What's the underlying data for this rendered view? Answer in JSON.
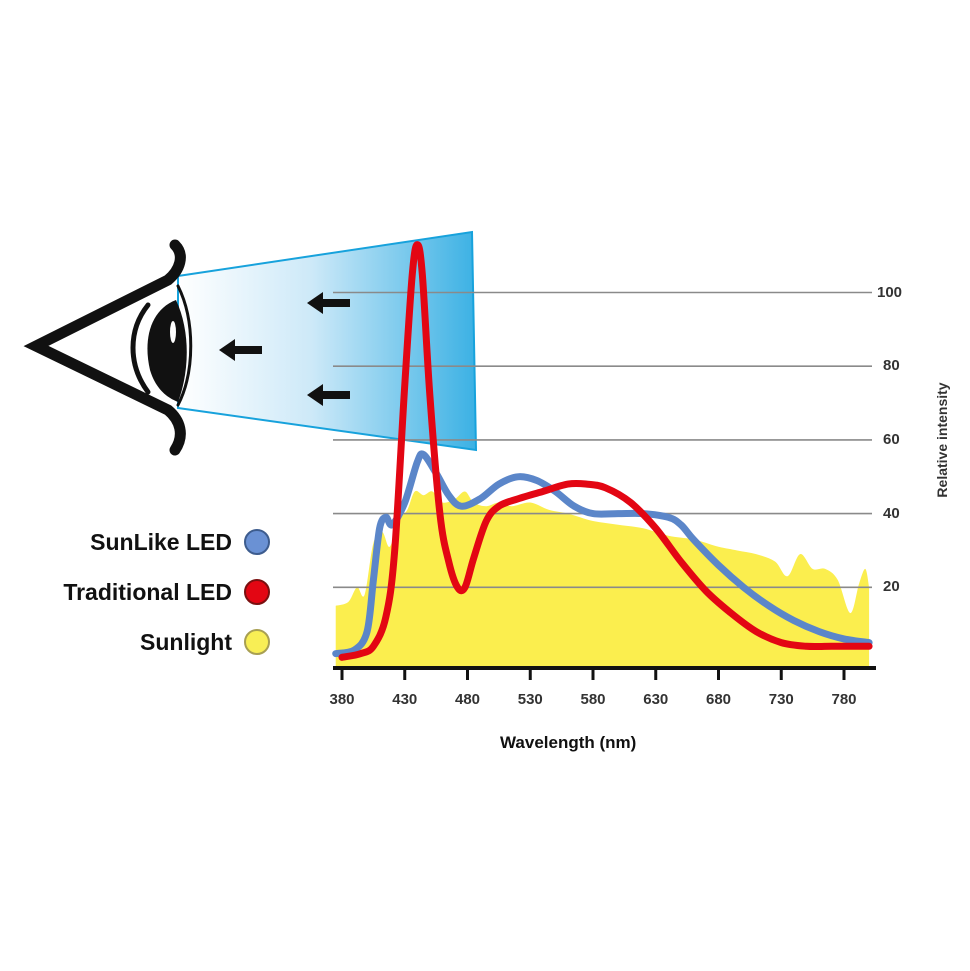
{
  "chart_data": {
    "type": "line",
    "title": "",
    "xlabel": "Wavelength (nm)",
    "ylabel": "Relative intensity",
    "xlim": [
      375,
      800
    ],
    "ylim": [
      0,
      115
    ],
    "x_ticks": [
      380,
      430,
      480,
      530,
      580,
      630,
      680,
      730,
      780
    ],
    "y_ticks": [
      20,
      40,
      60,
      80,
      100
    ],
    "grid": "horizontal",
    "legend_position": "left",
    "series": [
      {
        "name": "SunLike LED",
        "color": "#5b86c9",
        "style": "line",
        "x": [
          375,
          390,
          400,
          405,
          410,
          415,
          420,
          430,
          440,
          445,
          455,
          465,
          475,
          490,
          505,
          520,
          535,
          550,
          565,
          580,
          600,
          620,
          640,
          650,
          660,
          680,
          700,
          720,
          740,
          760,
          780,
          800
        ],
        "values": [
          2,
          3,
          8,
          22,
          36,
          39,
          37,
          43,
          54,
          56,
          51,
          45,
          42,
          44,
          48,
          50,
          49,
          46,
          42,
          40,
          40,
          40,
          39,
          37,
          33,
          26,
          20,
          15,
          11,
          8,
          6,
          5
        ]
      },
      {
        "name": "Traditional LED",
        "color": "#e30613",
        "style": "line",
        "x": [
          380,
          395,
          405,
          415,
          422,
          430,
          436,
          440,
          444,
          450,
          458,
          465,
          472,
          478,
          485,
          495,
          505,
          520,
          540,
          560,
          575,
          590,
          610,
          630,
          650,
          670,
          690,
          710,
          730,
          750,
          770,
          800
        ],
        "values": [
          1,
          2,
          4,
          12,
          30,
          75,
          105,
          113,
          105,
          72,
          40,
          27,
          20,
          20,
          28,
          38,
          42,
          44,
          46,
          48,
          48,
          47,
          43,
          36,
          27,
          19,
          13,
          8,
          5,
          4,
          4,
          4
        ]
      },
      {
        "name": "Sunlight",
        "color": "#fbee4e",
        "style": "area",
        "x": [
          375,
          385,
          392,
          398,
          405,
          412,
          418,
          425,
          432,
          438,
          445,
          452,
          460,
          470,
          478,
          485,
          495,
          505,
          515,
          530,
          545,
          560,
          580,
          600,
          620,
          640,
          660,
          680,
          695,
          710,
          725,
          735,
          745,
          755,
          765,
          775,
          785,
          792,
          797,
          800
        ],
        "values": [
          15,
          16,
          20,
          18,
          32,
          35,
          31,
          38,
          41,
          46,
          45,
          46,
          43,
          44,
          46,
          43,
          42,
          43,
          42,
          43,
          41,
          40,
          38,
          37,
          36,
          34,
          33,
          31,
          30,
          29,
          27,
          23,
          29,
          25,
          25,
          22,
          13,
          21,
          25,
          20
        ]
      }
    ]
  },
  "legend": {
    "items": [
      {
        "label": "SunLike LED",
        "color": "#6a91d4",
        "border": "#3d5c8e"
      },
      {
        "label": "Traditional LED",
        "color": "#e30613",
        "border": "#7a1010"
      },
      {
        "label": "Sunlight",
        "color": "#f8ee55",
        "border": "#a89f52"
      }
    ]
  },
  "illustration": {
    "eye_icon": "eye-icon",
    "light_cone": "light-cone",
    "arrows": [
      "arrow-left-icon",
      "arrow-left-icon",
      "arrow-left-icon"
    ],
    "cone_color": "#29aae2"
  }
}
